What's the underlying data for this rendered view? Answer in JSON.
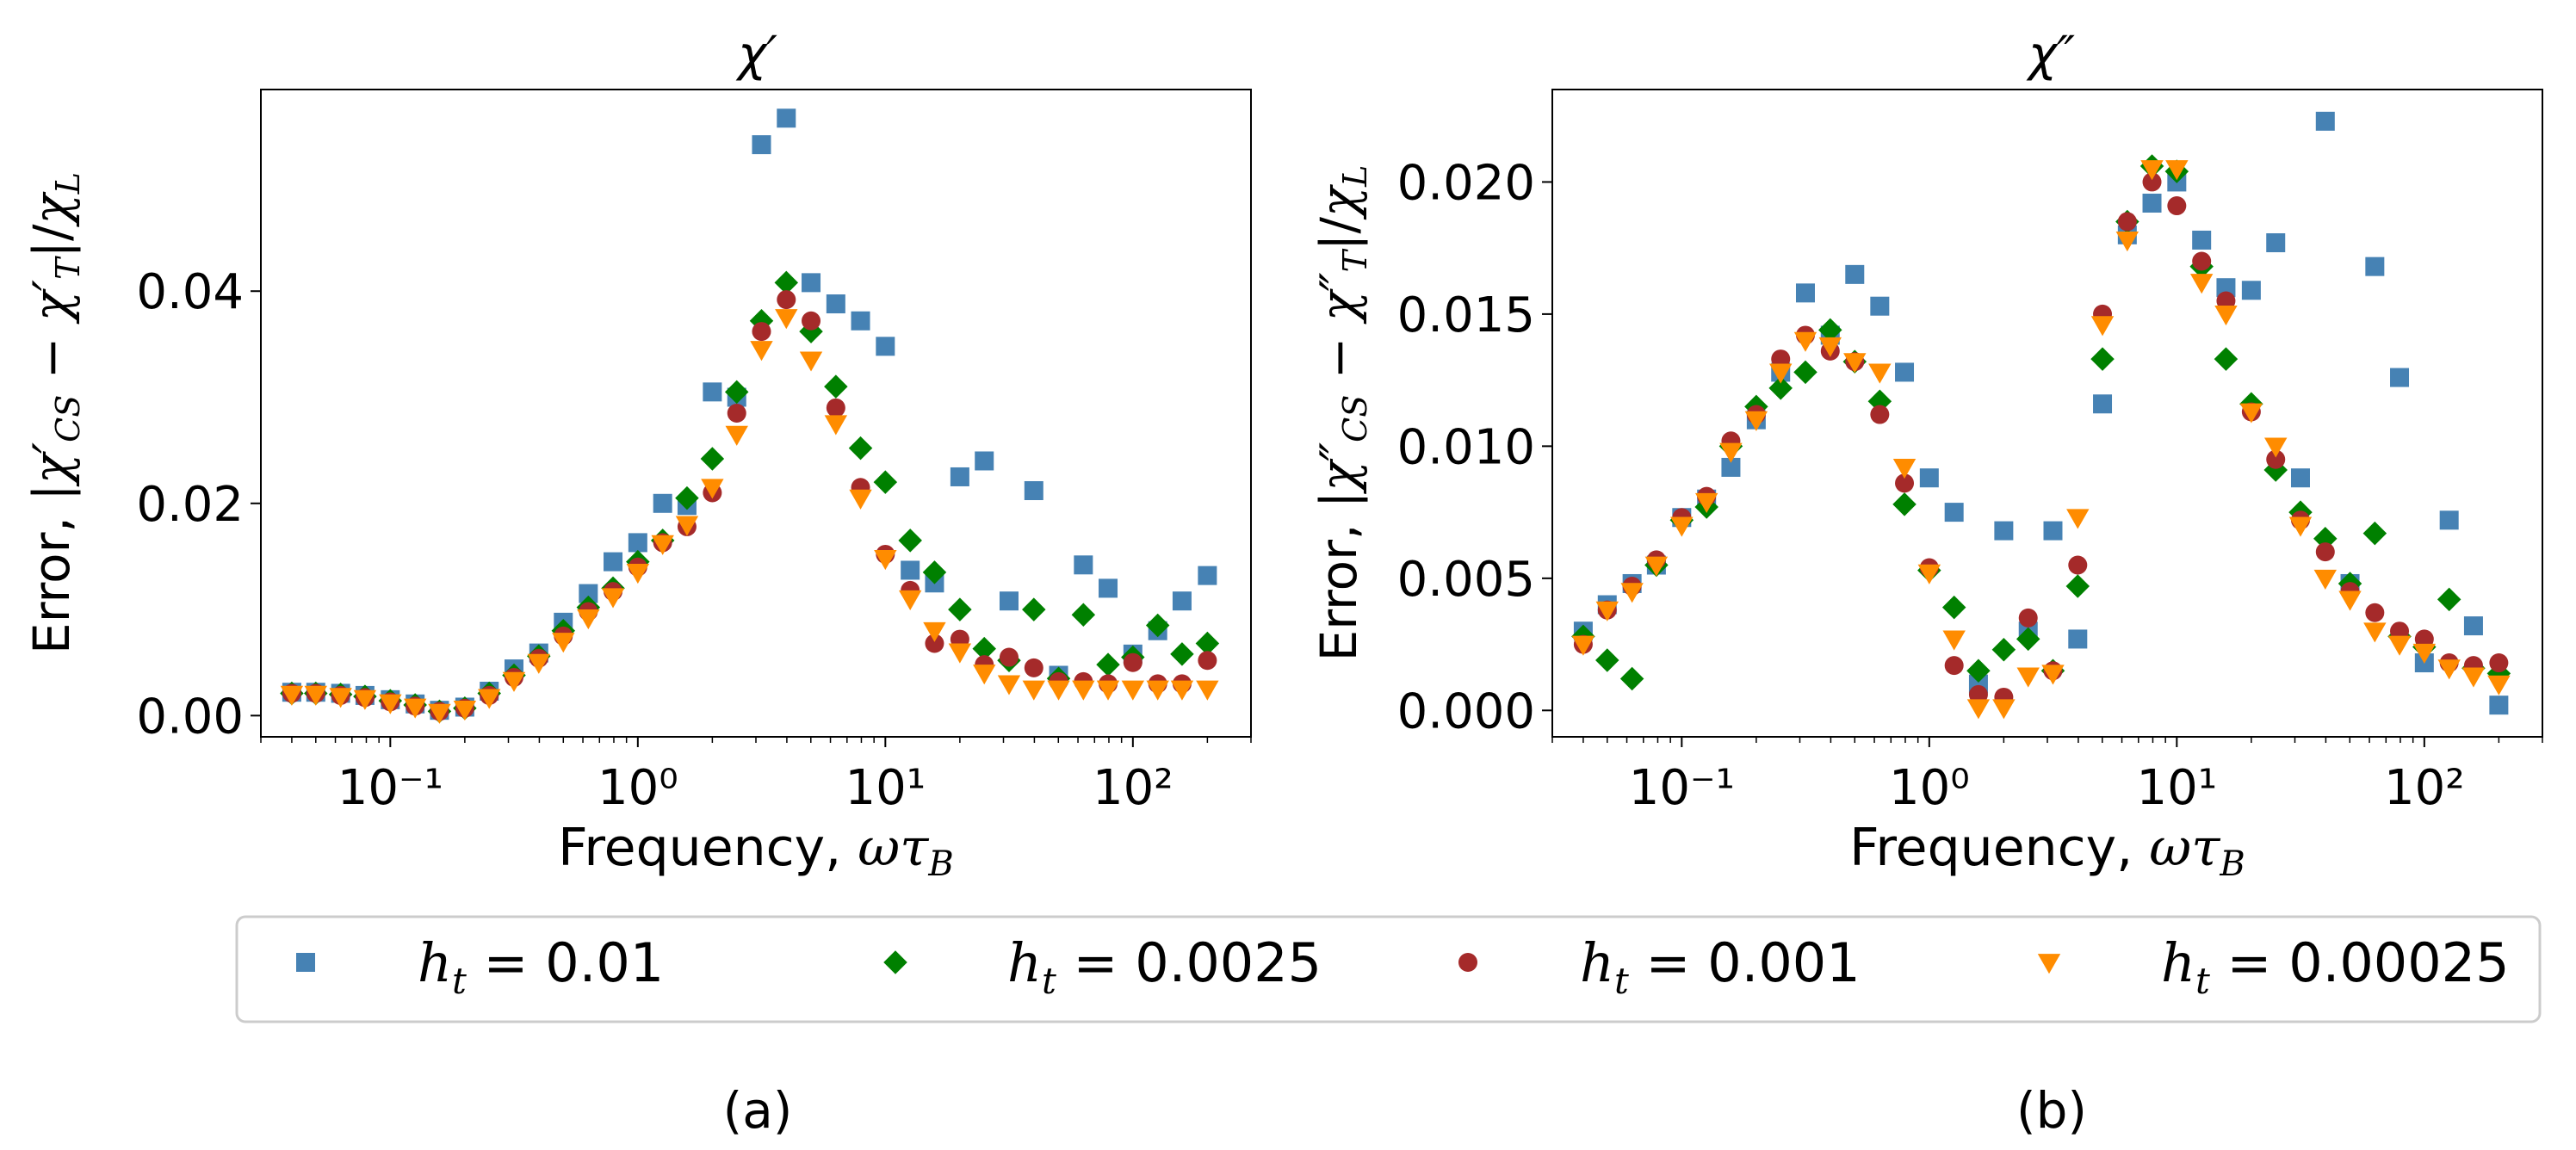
{
  "chart_data": [
    {
      "type": "scatter",
      "panel": "(a)",
      "title": "χ′",
      "xlabel": "Frequency, ωτ_B",
      "ylabel": "Error, |χ′_CS − χ′_T|/χ_L",
      "xscale": "log",
      "xlim": [
        0.03,
        300
      ],
      "ylim": [
        -0.002,
        0.059
      ],
      "yticks": [
        0.0,
        0.02,
        0.04
      ],
      "ytick_labels": [
        "0.00",
        "0.02",
        "0.04"
      ],
      "xticks": [
        0.1,
        1,
        10,
        100
      ],
      "xtick_labels": [
        "10⁻¹",
        "10⁰",
        "10¹",
        "10²"
      ],
      "series": [
        {
          "name": "h_t = 0.01",
          "x": [
            0.04,
            0.05,
            0.063,
            0.079,
            0.1,
            0.126,
            0.158,
            0.2,
            0.251,
            0.316,
            0.398,
            0.5,
            0.631,
            0.794,
            1,
            1.26,
            1.58,
            2,
            2.51,
            3.16,
            3.98,
            5.01,
            6.31,
            7.94,
            10,
            12.6,
            15.8,
            20,
            25.1,
            31.6,
            39.8,
            50.1,
            63.1,
            79.4,
            100,
            126,
            158,
            200
          ],
          "y": [
            0.0022,
            0.0022,
            0.0021,
            0.0019,
            0.0015,
            0.0011,
            0.0005,
            0.0008,
            0.0023,
            0.0044,
            0.0059,
            0.0088,
            0.0115,
            0.0145,
            0.0163,
            0.02,
            0.0198,
            0.0305,
            0.03,
            0.0538,
            0.0563,
            0.0408,
            0.0388,
            0.0372,
            0.0348,
            0.0137,
            0.0125,
            0.0225,
            0.024,
            0.0108,
            0.0212,
            0.0038,
            0.0142,
            0.012,
            0.0058,
            0.008,
            0.0108,
            0.0132
          ]
        },
        {
          "name": "h_t = 0.0025",
          "x": [
            0.04,
            0.05,
            0.063,
            0.079,
            0.1,
            0.126,
            0.158,
            0.2,
            0.251,
            0.316,
            0.398,
            0.5,
            0.631,
            0.794,
            1,
            1.26,
            1.58,
            2,
            2.51,
            3.16,
            3.98,
            5.01,
            6.31,
            7.94,
            10,
            12.6,
            15.8,
            20,
            25.1,
            31.6,
            39.8,
            50.1,
            63.1,
            79.4,
            100,
            126,
            158,
            200
          ],
          "y": [
            0.0021,
            0.0021,
            0.002,
            0.0018,
            0.0014,
            0.001,
            0.0004,
            0.0007,
            0.0021,
            0.0038,
            0.0056,
            0.008,
            0.0102,
            0.012,
            0.0145,
            0.0165,
            0.0205,
            0.0242,
            0.0305,
            0.0372,
            0.0408,
            0.0362,
            0.031,
            0.0252,
            0.022,
            0.0165,
            0.0135,
            0.01,
            0.0063,
            0.0052,
            0.01,
            0.0035,
            0.0095,
            0.0048,
            0.0055,
            0.0085,
            0.0058,
            0.0068
          ]
        },
        {
          "name": "h_t = 0.001",
          "x": [
            0.04,
            0.05,
            0.063,
            0.079,
            0.1,
            0.126,
            0.158,
            0.2,
            0.251,
            0.316,
            0.398,
            0.5,
            0.631,
            0.794,
            1,
            1.26,
            1.58,
            2,
            2.51,
            3.16,
            3.98,
            5.01,
            6.31,
            7.94,
            10,
            12.6,
            15.8,
            20,
            25.1,
            31.6,
            39.8,
            50.1,
            63.1,
            79.4,
            100,
            126,
            158,
            200
          ],
          "y": [
            0.0021,
            0.0021,
            0.0019,
            0.0017,
            0.0013,
            0.0009,
            0.0004,
            0.0007,
            0.0019,
            0.0036,
            0.0054,
            0.0075,
            0.0098,
            0.0117,
            0.014,
            0.0163,
            0.0178,
            0.021,
            0.0285,
            0.0362,
            0.0392,
            0.0372,
            0.029,
            0.0215,
            0.0152,
            0.0118,
            0.0068,
            0.0072,
            0.0048,
            0.0055,
            0.0045,
            0.0032,
            0.0032,
            0.003,
            0.005,
            0.003,
            0.003,
            0.0052
          ]
        },
        {
          "name": "h_t = 0.00025",
          "x": [
            0.04,
            0.05,
            0.063,
            0.079,
            0.1,
            0.126,
            0.158,
            0.2,
            0.251,
            0.316,
            0.398,
            0.5,
            0.631,
            0.794,
            1,
            1.26,
            1.58,
            2,
            2.51,
            3.16,
            3.98,
            5.01,
            6.31,
            7.94,
            10,
            12.6,
            15.8,
            20,
            25.1,
            31.6,
            39.8,
            50.1,
            63.1,
            79.4,
            100,
            126,
            158,
            200
          ],
          "y": [
            0.002,
            0.002,
            0.0018,
            0.0016,
            0.0012,
            0.0008,
            0.0003,
            0.0006,
            0.0017,
            0.0033,
            0.005,
            0.007,
            0.0092,
            0.0112,
            0.0135,
            0.0162,
            0.018,
            0.0215,
            0.0265,
            0.0345,
            0.0375,
            0.0335,
            0.0275,
            0.0205,
            0.0148,
            0.011,
            0.008,
            0.006,
            0.004,
            0.003,
            0.0025,
            0.0025,
            0.0025,
            0.0025,
            0.0025,
            0.0025,
            0.0025,
            0.0025
          ]
        }
      ]
    },
    {
      "type": "scatter",
      "panel": "(b)",
      "title": "χ″",
      "xlabel": "Frequency, ωτ_B",
      "ylabel": "Error, |χ″_CS − χ″_T|/χ_L",
      "xscale": "log",
      "xlim": [
        0.03,
        300
      ],
      "ylim": [
        -0.001,
        0.0235
      ],
      "yticks": [
        0.0,
        0.005,
        0.01,
        0.015,
        0.02
      ],
      "ytick_labels": [
        "0.000",
        "0.005",
        "0.010",
        "0.015",
        "0.020"
      ],
      "xticks": [
        0.1,
        1,
        10,
        100
      ],
      "xtick_labels": [
        "10⁻¹",
        "10⁰",
        "10¹",
        "10²"
      ],
      "series": [
        {
          "name": "h_t = 0.01",
          "x": [
            0.04,
            0.05,
            0.063,
            0.079,
            0.1,
            0.126,
            0.158,
            0.2,
            0.251,
            0.316,
            0.398,
            0.5,
            0.631,
            0.794,
            1,
            1.26,
            1.58,
            2,
            2.51,
            3.16,
            3.98,
            5.01,
            6.31,
            7.94,
            10,
            12.6,
            15.8,
            20,
            25.1,
            31.6,
            39.8,
            50.1,
            63.1,
            79.4,
            100,
            126,
            158,
            200
          ],
          "y": [
            0.003,
            0.004,
            0.0048,
            0.0055,
            0.0073,
            0.008,
            0.0092,
            0.011,
            0.0128,
            0.0158,
            0.0142,
            0.0165,
            0.0153,
            0.0128,
            0.0088,
            0.0075,
            0.001,
            0.0068,
            0.003,
            0.0068,
            0.0027,
            0.0116,
            0.018,
            0.0192,
            0.02,
            0.0178,
            0.016,
            0.0159,
            0.0177,
            0.0088,
            0.0223,
            0.0048,
            0.0168,
            0.0126,
            0.0018,
            0.0072,
            0.0032,
            0.0002
          ]
        },
        {
          "name": "h_t = 0.0025",
          "x": [
            0.04,
            0.05,
            0.063,
            0.079,
            0.1,
            0.126,
            0.158,
            0.2,
            0.251,
            0.316,
            0.398,
            0.5,
            0.631,
            0.794,
            1,
            1.26,
            1.58,
            2,
            2.51,
            3.16,
            3.98,
            5.01,
            6.31,
            7.94,
            10,
            12.6,
            15.8,
            20,
            25.1,
            31.6,
            39.8,
            50.1,
            63.1,
            79.4,
            100,
            126,
            158,
            200
          ],
          "y": [
            0.0028,
            0.0019,
            0.0012,
            0.0055,
            0.0072,
            0.0077,
            0.01,
            0.0115,
            0.0122,
            0.0128,
            0.0144,
            0.0132,
            0.0117,
            0.0078,
            0.0053,
            0.0039,
            0.0015,
            0.0023,
            0.0027,
            0.0015,
            0.0047,
            0.0133,
            0.0185,
            0.0206,
            0.0204,
            0.0168,
            0.0133,
            0.0116,
            0.0091,
            0.0075,
            0.0065,
            0.0048,
            0.0067,
            0.0028,
            0.0024,
            0.0042,
            0.0016,
            0.0014
          ]
        },
        {
          "name": "h_t = 0.001",
          "x": [
            0.04,
            0.05,
            0.063,
            0.079,
            0.1,
            0.126,
            0.158,
            0.2,
            0.251,
            0.316,
            0.398,
            0.5,
            0.631,
            0.794,
            1,
            1.26,
            1.58,
            2,
            2.51,
            3.16,
            3.98,
            5.01,
            6.31,
            7.94,
            10,
            12.6,
            15.8,
            20,
            25.1,
            31.6,
            39.8,
            50.1,
            63.1,
            79.4,
            100,
            126,
            158,
            200
          ],
          "y": [
            0.0025,
            0.0038,
            0.0047,
            0.0057,
            0.0073,
            0.0081,
            0.0102,
            0.0112,
            0.0133,
            0.0142,
            0.0136,
            0.0132,
            0.0112,
            0.0086,
            0.0054,
            0.0017,
            0.0006,
            0.0005,
            0.0035,
            0.0015,
            0.0055,
            0.015,
            0.0185,
            0.02,
            0.0191,
            0.017,
            0.0155,
            0.0113,
            0.0095,
            0.0072,
            0.006,
            0.0045,
            0.0037,
            0.003,
            0.0027,
            0.0018,
            0.0017,
            0.0018
          ]
        },
        {
          "name": "h_t = 0.00025",
          "x": [
            0.04,
            0.05,
            0.063,
            0.079,
            0.1,
            0.126,
            0.158,
            0.2,
            0.251,
            0.316,
            0.398,
            0.5,
            0.631,
            0.794,
            1,
            1.26,
            1.58,
            2,
            2.51,
            3.16,
            3.98,
            5.01,
            6.31,
            7.94,
            10,
            12.6,
            15.8,
            20,
            25.1,
            31.6,
            39.8,
            50.1,
            63.1,
            79.4,
            100,
            126,
            158,
            200
          ],
          "y": [
            0.0025,
            0.0038,
            0.0045,
            0.0055,
            0.007,
            0.0079,
            0.0098,
            0.011,
            0.0128,
            0.014,
            0.0138,
            0.0132,
            0.0128,
            0.0092,
            0.0052,
            0.0027,
            0.0001,
            0.0001,
            0.0013,
            0.0014,
            0.0073,
            0.0146,
            0.0178,
            0.0205,
            0.0205,
            0.0162,
            0.015,
            0.0113,
            0.01,
            0.007,
            0.005,
            0.0042,
            0.003,
            0.0025,
            0.0022,
            0.0016,
            0.0013,
            0.001
          ]
        }
      ]
    }
  ],
  "legend": {
    "entries": [
      {
        "label_var": "h",
        "label_sub": "t",
        "label_value": " = 0.01",
        "marker": "square",
        "color": "#4682b4"
      },
      {
        "label_var": "h",
        "label_sub": "t",
        "label_value": " = 0.0025",
        "marker": "diamond",
        "color": "#008000"
      },
      {
        "label_var": "h",
        "label_sub": "t",
        "label_value": " = 0.001",
        "marker": "circle",
        "color": "#a52a2a"
      },
      {
        "label_var": "h",
        "label_sub": "t",
        "label_value": " = 0.00025",
        "marker": "triangle-down",
        "color": "#ff8c00"
      }
    ]
  },
  "panel_labels": [
    "(a)",
    "(b)"
  ],
  "colors": {
    "series": [
      "#4682b4",
      "#008000",
      "#a52a2a",
      "#ff8c00"
    ]
  }
}
